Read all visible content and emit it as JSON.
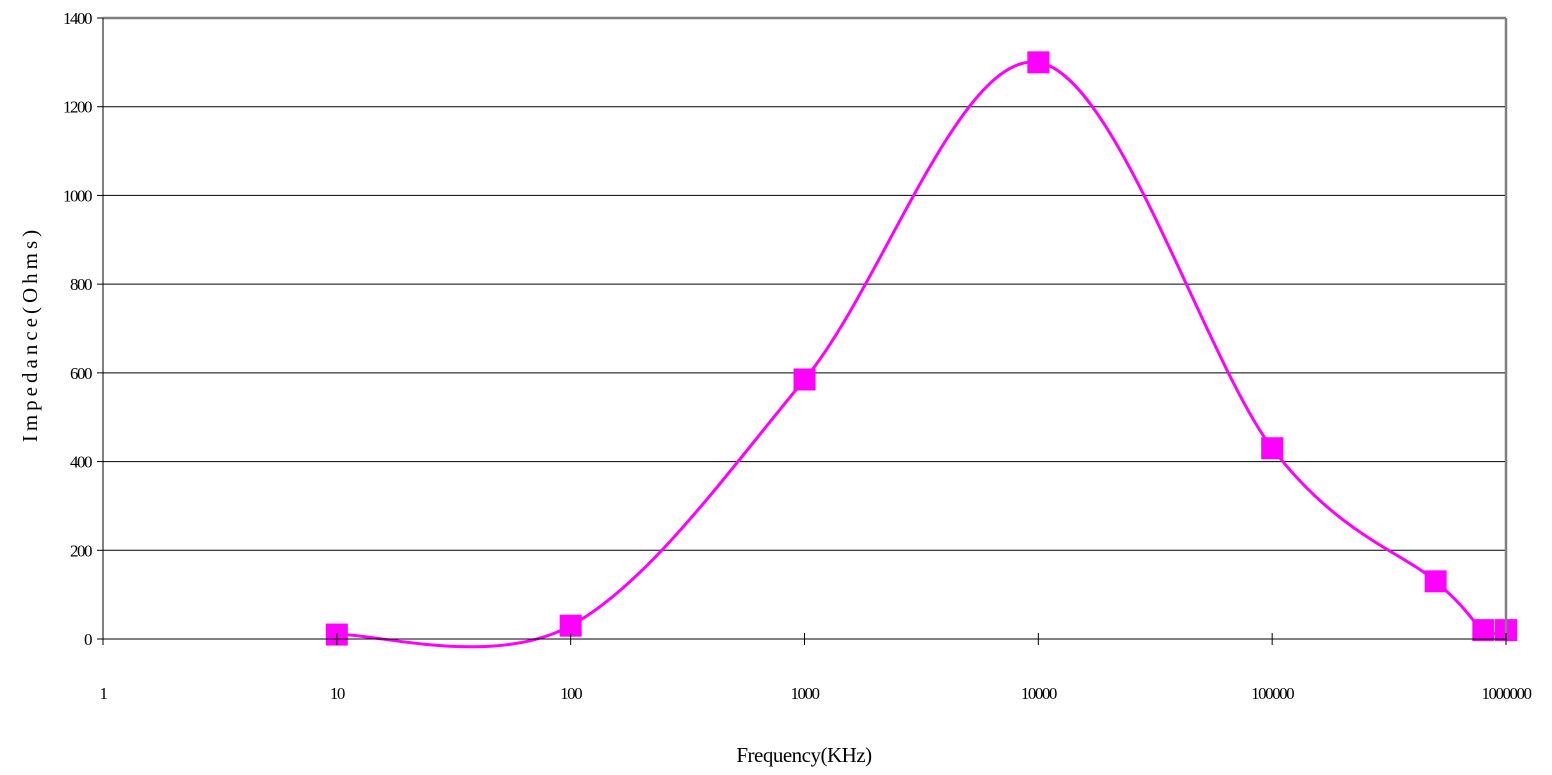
{
  "chart_data": {
    "type": "line",
    "xscale": "log",
    "xlim": [
      1,
      1000000
    ],
    "ylim": [
      0,
      1400
    ],
    "x_ticks": [
      1,
      10,
      100,
      1000,
      10000,
      100000,
      1000000
    ],
    "x_tick_labels": [
      "1",
      "10",
      "100",
      "1000",
      "10000",
      "100000",
      "1000000"
    ],
    "y_ticks": [
      0,
      200,
      400,
      600,
      800,
      1000,
      1200,
      1400
    ],
    "y_tick_labels": [
      "0",
      "200",
      "400",
      "600",
      "800",
      "1000",
      "1200",
      "1400"
    ],
    "xlabel": "Frequency(KHz)",
    "ylabel": "Impedance(Ohms)",
    "grid": "horizontal",
    "legend": "none",
    "series": [
      {
        "color": "#ff00ff",
        "marker": "square",
        "smooth": true,
        "x": [
          10,
          100,
          1000,
          10000,
          100000,
          500000,
          800000,
          1000000
        ],
        "y": [
          10,
          30,
          585,
          1300,
          430,
          130,
          20,
          20
        ]
      }
    ]
  }
}
